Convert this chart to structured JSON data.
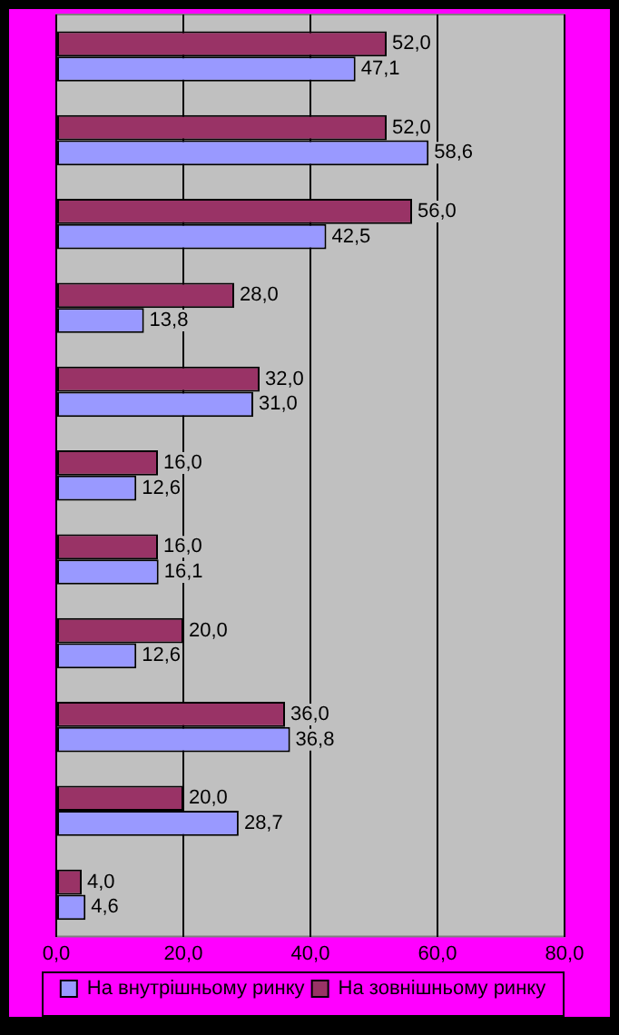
{
  "chart_data": {
    "type": "bar",
    "orientation": "horizontal",
    "categories": [
      null,
      null,
      null,
      null,
      null,
      null,
      null,
      null,
      null,
      null,
      null
    ],
    "series": [
      {
        "name": "На внутрішньому ринку",
        "color": "#9999ff",
        "values": [
          47.1,
          58.6,
          42.5,
          13.8,
          31.0,
          12.6,
          16.1,
          12.6,
          36.8,
          28.7,
          4.6
        ],
        "value_labels": [
          "47,1",
          "58,6",
          "42,5",
          "13,8",
          "31,0",
          "12,6",
          "16,1",
          "12,6",
          "36,8",
          "28,7",
          "4,6"
        ]
      },
      {
        "name": "На зовнішньому ринку",
        "color": "#993366",
        "values": [
          52.0,
          52.0,
          56.0,
          28.0,
          32.0,
          16.0,
          16.0,
          20.0,
          36.0,
          20.0,
          4.0
        ],
        "value_labels": [
          "52,0",
          "52,0",
          "56,0",
          "28,0",
          "32,0",
          "16,0",
          "16,0",
          "20,0",
          "36,0",
          "20,0",
          "4,0"
        ]
      }
    ],
    "xlim": [
      0,
      80
    ],
    "xticks": [
      {
        "value": 0,
        "label": "0,0"
      },
      {
        "value": 20,
        "label": "20,0"
      },
      {
        "value": 40,
        "label": "40,0"
      },
      {
        "value": 60,
        "label": "60,0"
      },
      {
        "value": 80,
        "label": "80,0"
      }
    ],
    "grid": "x",
    "legend": "bottom",
    "tick_labels": "x"
  }
}
